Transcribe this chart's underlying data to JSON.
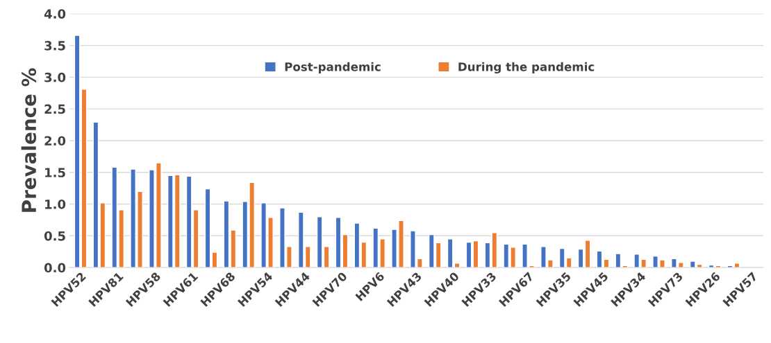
{
  "chart_data": {
    "type": "bar",
    "ylabel": "Prevalence %",
    "categories": [
      "HPV52",
      null,
      "HPV81",
      null,
      "HPV58",
      null,
      "HPV61",
      null,
      "HPV68",
      null,
      "HPV54",
      null,
      "HPV44",
      null,
      "HPV70",
      null,
      "HPV6",
      null,
      "HPV43",
      null,
      "HPV40",
      null,
      "HPV33",
      null,
      "HPV67",
      null,
      "HPV35",
      null,
      "HPV45",
      null,
      "HPV34",
      null,
      "HPV73",
      null,
      "HPV26",
      null,
      "HPV57"
    ],
    "series": [
      {
        "name": "Post-pandemic",
        "color": "#4472c4",
        "values": [
          3.66,
          2.29,
          1.58,
          1.55,
          1.54,
          1.45,
          1.44,
          1.24,
          1.05,
          1.04,
          1.02,
          0.94,
          0.87,
          0.8,
          0.79,
          0.7,
          0.62,
          0.6,
          0.58,
          0.52,
          0.45,
          0.4,
          0.39,
          0.37,
          0.37,
          0.33,
          0.3,
          0.29,
          0.26,
          0.22,
          0.21,
          0.18,
          0.14,
          0.1,
          0.04,
          0.03,
          null
        ]
      },
      {
        "name": "During the pandemic",
        "color": "#ed7d31",
        "values": [
          2.81,
          1.02,
          0.91,
          1.2,
          1.65,
          1.46,
          0.91,
          0.24,
          0.59,
          1.34,
          0.79,
          0.33,
          0.33,
          0.33,
          0.52,
          0.4,
          0.45,
          0.74,
          0.14,
          0.39,
          0.07,
          0.42,
          0.55,
          0.32,
          0.03,
          0.12,
          0.15,
          0.43,
          0.13,
          0.03,
          0.13,
          0.12,
          0.08,
          0.05,
          0.03,
          0.07,
          null
        ]
      }
    ],
    "ylim": [
      0,
      4
    ],
    "yticks": [
      {
        "value": 0,
        "label": "0.0"
      },
      0.5,
      {
        "value": 1,
        "label": "1.0"
      },
      1.5,
      {
        "value": 2,
        "label": "2.0"
      },
      2.5,
      {
        "value": 3,
        "label": "3.0"
      },
      3.5,
      {
        "value": 4,
        "label": "4.0"
      }
    ],
    "grid": "y",
    "legend": "top"
  }
}
